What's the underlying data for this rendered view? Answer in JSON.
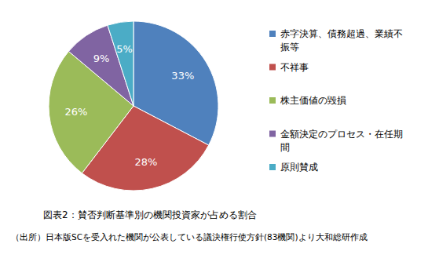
{
  "chart_data": {
    "type": "pie",
    "title": "図表2：賛否判断基準別の機関投資家が占める割合",
    "source": "（出所）日本版SCを受入れた機関が公表している議決権行使方針(83機関)より大和総研作成",
    "categories": [
      "赤字決算、債務超過、業績不振等",
      "不祥事",
      "株主価値の毀損",
      "金額決定のプロセス・在任期間",
      "原則賛成"
    ],
    "values": [
      33,
      28,
      26,
      9,
      5
    ],
    "value_labels": [
      "33%",
      "28%",
      "26%",
      "9%",
      "5%"
    ],
    "colors": [
      "#4f81bd",
      "#c0504d",
      "#9bbb59",
      "#8064a2",
      "#4bacc6"
    ],
    "data_labels": true,
    "legend": "right"
  }
}
